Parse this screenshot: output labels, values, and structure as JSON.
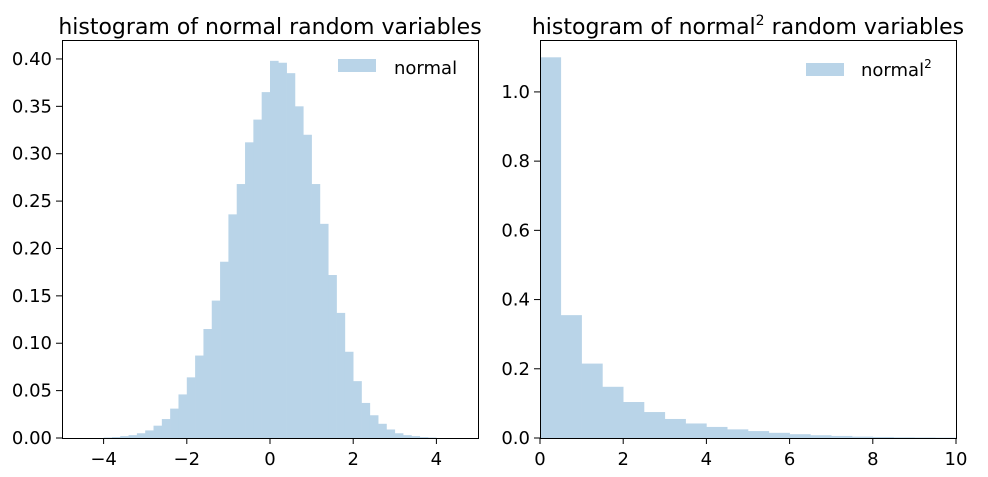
{
  "chart_data": [
    {
      "type": "bar",
      "title": "histogram of normal random variables",
      "xlabel": "",
      "ylabel": "",
      "xlim": [
        -5,
        5
      ],
      "ylim": [
        0,
        0.42
      ],
      "xticks": [
        -4,
        -2,
        0,
        2,
        4
      ],
      "xtick_labels": [
        "−4",
        "−2",
        "0",
        "2",
        "4"
      ],
      "yticks": [
        0.0,
        0.05,
        0.1,
        0.15,
        0.2,
        0.25,
        0.3,
        0.35,
        0.4
      ],
      "ytick_labels": [
        "0.00",
        "0.05",
        "0.10",
        "0.15",
        "0.20",
        "0.25",
        "0.30",
        "0.35",
        "0.40"
      ],
      "grid": false,
      "legend_position": "top-right",
      "color": "#b9d4e8",
      "series": [
        {
          "name": "normal",
          "bin_edges": [
            -4.0,
            -3.8,
            -3.6,
            -3.4,
            -3.2,
            -3.0,
            -2.8,
            -2.6,
            -2.4,
            -2.2,
            -2.0,
            -1.8,
            -1.6,
            -1.4,
            -1.2,
            -1.0,
            -0.8,
            -0.6,
            -0.4,
            -0.2,
            0.0,
            0.2,
            0.4,
            0.6,
            0.8,
            1.0,
            1.2,
            1.4,
            1.6,
            1.8,
            2.0,
            2.2,
            2.4,
            2.6,
            2.8,
            3.0,
            3.2,
            3.4,
            3.6,
            3.8,
            4.0
          ],
          "values": [
            0.0005,
            0.001,
            0.002,
            0.003,
            0.005,
            0.008,
            0.013,
            0.02,
            0.031,
            0.046,
            0.064,
            0.087,
            0.115,
            0.145,
            0.186,
            0.236,
            0.268,
            0.312,
            0.336,
            0.365,
            0.398,
            0.396,
            0.385,
            0.35,
            0.32,
            0.268,
            0.226,
            0.172,
            0.132,
            0.091,
            0.06,
            0.037,
            0.024,
            0.015,
            0.009,
            0.005,
            0.003,
            0.002,
            0.001,
            0.0005
          ]
        }
      ]
    },
    {
      "type": "bar",
      "title": "histogram of normal² random variables",
      "title_main": "histogram of normal",
      "title_sup": "2",
      "title_rest": " random variables",
      "xlabel": "",
      "ylabel": "",
      "xlim": [
        0,
        10
      ],
      "ylim": [
        0,
        1.15
      ],
      "xticks": [
        0,
        2,
        4,
        6,
        8,
        10
      ],
      "xtick_labels": [
        "0",
        "2",
        "4",
        "6",
        "8",
        "10"
      ],
      "yticks": [
        0.0,
        0.2,
        0.4,
        0.6,
        0.8,
        1.0
      ],
      "ytick_labels": [
        "0.0",
        "0.2",
        "0.4",
        "0.6",
        "0.8",
        "1.0"
      ],
      "grid": false,
      "legend_position": "top-right",
      "color": "#b9d4e8",
      "series": [
        {
          "name": "normal²",
          "name_main": "normal",
          "name_sup": "2",
          "bin_edges": [
            0.0,
            0.5,
            1.0,
            1.5,
            2.0,
            2.5,
            3.0,
            3.5,
            4.0,
            4.5,
            5.0,
            5.5,
            6.0,
            6.5,
            7.0,
            7.5,
            8.0,
            8.5,
            9.0,
            9.5,
            10.0
          ],
          "values": [
            1.1,
            0.355,
            0.215,
            0.148,
            0.104,
            0.075,
            0.055,
            0.042,
            0.032,
            0.025,
            0.02,
            0.015,
            0.011,
            0.008,
            0.006,
            0.004,
            0.003,
            0.002,
            0.0015,
            0.001
          ]
        }
      ]
    }
  ]
}
